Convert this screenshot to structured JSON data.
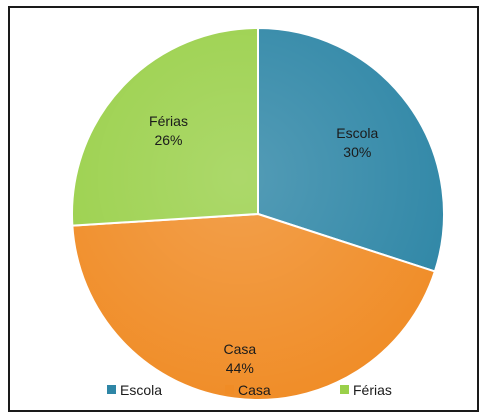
{
  "chart_data": {
    "type": "pie",
    "categories": [
      "Escola",
      "Casa",
      "Férias"
    ],
    "values": [
      30,
      44,
      26
    ],
    "labels": [
      "30%",
      "44%",
      "26%"
    ],
    "colors": [
      "#2e86a6",
      "#f08c26",
      "#9ad04a"
    ],
    "legend_position": "bottom",
    "start_angle_deg": 0,
    "direction": "clockwise"
  }
}
